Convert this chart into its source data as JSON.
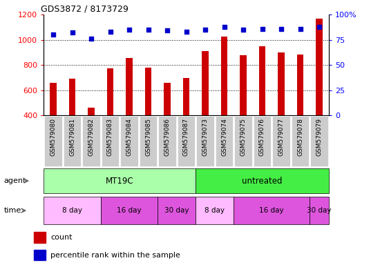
{
  "title": "GDS3872 / 8173729",
  "samples": [
    "GSM579080",
    "GSM579081",
    "GSM579082",
    "GSM579083",
    "GSM579084",
    "GSM579085",
    "GSM579086",
    "GSM579087",
    "GSM579073",
    "GSM579074",
    "GSM579075",
    "GSM579076",
    "GSM579077",
    "GSM579078",
    "GSM579079"
  ],
  "counts": [
    660,
    690,
    460,
    775,
    855,
    780,
    660,
    695,
    910,
    1025,
    875,
    950,
    900,
    880,
    1170
  ],
  "percentiles": [
    80,
    82,
    76,
    83,
    85,
    85,
    84,
    83,
    85,
    88,
    85,
    86,
    86,
    86,
    88
  ],
  "bar_color": "#cc0000",
  "dot_color": "#0000cc",
  "ylim_left": [
    400,
    1200
  ],
  "ylim_right": [
    0,
    100
  ],
  "yticks_left": [
    400,
    600,
    800,
    1000,
    1200
  ],
  "yticks_right": [
    0,
    25,
    50,
    75,
    100
  ],
  "ytick_labels_right": [
    "0",
    "25",
    "50",
    "75",
    "100%"
  ],
  "grid_values": [
    600,
    800,
    1000
  ],
  "agent_groups": [
    {
      "label": "MT19C",
      "start": 0,
      "end": 7,
      "color": "#aaffaa"
    },
    {
      "label": "untreated",
      "start": 8,
      "end": 14,
      "color": "#44ee44"
    }
  ],
  "time_groups": [
    {
      "label": "8 day",
      "start": 0,
      "end": 2,
      "color": "#ffbbff"
    },
    {
      "label": "16 day",
      "start": 3,
      "end": 5,
      "color": "#dd55dd"
    },
    {
      "label": "30 day",
      "start": 6,
      "end": 7,
      "color": "#dd55dd"
    },
    {
      "label": "8 day",
      "start": 8,
      "end": 9,
      "color": "#ffbbff"
    },
    {
      "label": "16 day",
      "start": 10,
      "end": 13,
      "color": "#dd55dd"
    },
    {
      "label": "30 day",
      "start": 14,
      "end": 14,
      "color": "#dd55dd"
    }
  ],
  "legend_count_color": "#cc0000",
  "legend_dot_color": "#0000cc",
  "bg_color": "#ffffff",
  "tick_bg_color": "#cccccc"
}
